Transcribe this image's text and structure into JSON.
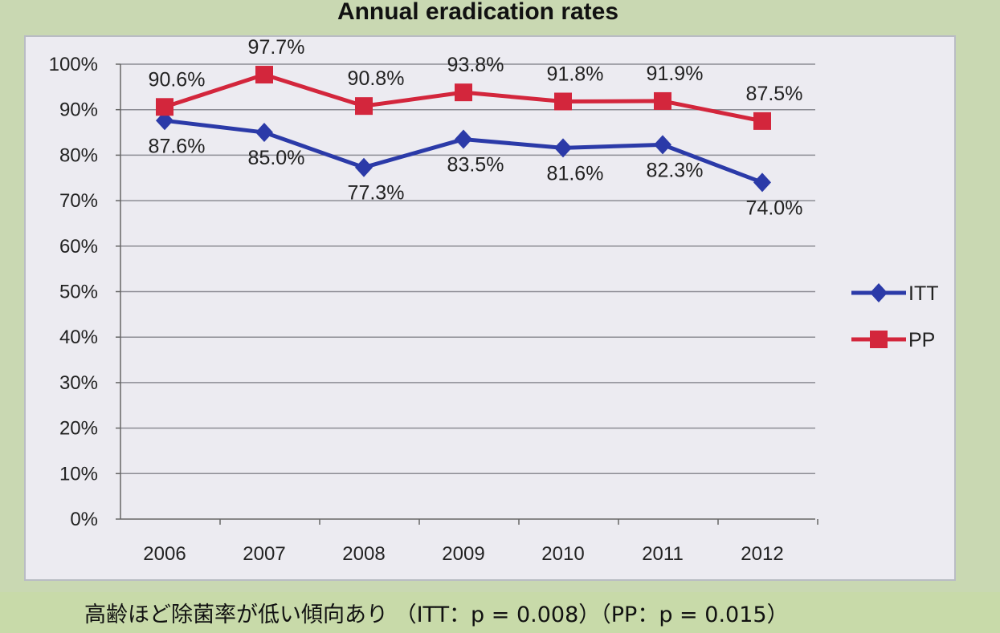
{
  "footnote": "高齢ほど除菌率が低い傾向あり （ITT：p = 0.008）（PP：p = 0.015）",
  "chart_data": {
    "type": "line",
    "title": "Annual eradication rates",
    "xlabel": "",
    "ylabel": "",
    "categories": [
      "2006",
      "2007",
      "2008",
      "2009",
      "2010",
      "2011",
      "2012"
    ],
    "ylim": [
      0,
      100
    ],
    "yticks": [
      "0%",
      "10%",
      "20%",
      "30%",
      "40%",
      "50%",
      "60%",
      "70%",
      "80%",
      "90%",
      "100%"
    ],
    "grid": true,
    "legend_position": "right",
    "series": [
      {
        "name": "ITT",
        "color": "#2b3aa8",
        "marker": "diamond",
        "values": [
          87.6,
          85.0,
          77.3,
          83.5,
          81.6,
          82.3,
          74.0
        ],
        "labels": [
          "87.6%",
          "85.0%",
          "77.3%",
          "83.5%",
          "81.6%",
          "82.3%",
          "74.0%"
        ]
      },
      {
        "name": "PP",
        "color": "#d3263c",
        "marker": "square",
        "values": [
          90.6,
          97.7,
          90.8,
          93.8,
          91.8,
          91.9,
          87.5
        ],
        "labels": [
          "90.6%",
          "97.7%",
          "90.8%",
          "93.8%",
          "91.8%",
          "91.9%",
          "87.5%"
        ]
      }
    ]
  }
}
